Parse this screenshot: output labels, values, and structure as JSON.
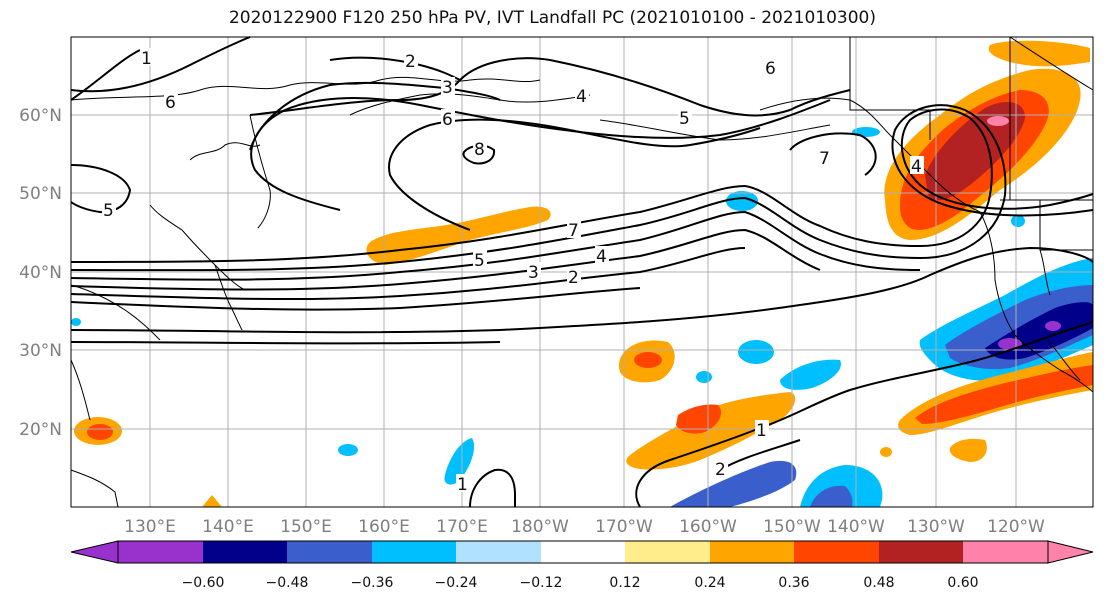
{
  "title": "2020122900 F120 250 hPa PV, IVT Landfall PC (2021010100 - 2021010300)",
  "map": {
    "lon_ticks": [
      "130°E",
      "140°E",
      "150°E",
      "160°E",
      "170°E",
      "180°W",
      "170°W",
      "160°W",
      "150°W",
      "140°W",
      "130°W",
      "120°W"
    ],
    "lat_ticks": [
      "60°N",
      "50°N",
      "40°N",
      "30°N",
      "20°N"
    ],
    "grid": true,
    "contour_labels": [
      "1",
      "6",
      "2",
      "3",
      "4",
      "6",
      "5",
      "6",
      "8",
      "5",
      "7",
      "5",
      "3",
      "4",
      "2",
      "7",
      "4",
      "1",
      "1",
      "2"
    ]
  },
  "colorbar": {
    "ticks": [
      "−0.60",
      "−0.48",
      "−0.36",
      "−0.24",
      "−0.12",
      "0.12",
      "0.24",
      "0.36",
      "0.48",
      "0.60"
    ],
    "colors": [
      "#9932cc",
      "#00008b",
      "#3a5fcd",
      "#00bfff",
      "#b0e2ff",
      "#ffffff",
      "#ffec8b",
      "#ffa500",
      "#ff4500",
      "#b22222",
      "#ff82ab"
    ]
  }
}
